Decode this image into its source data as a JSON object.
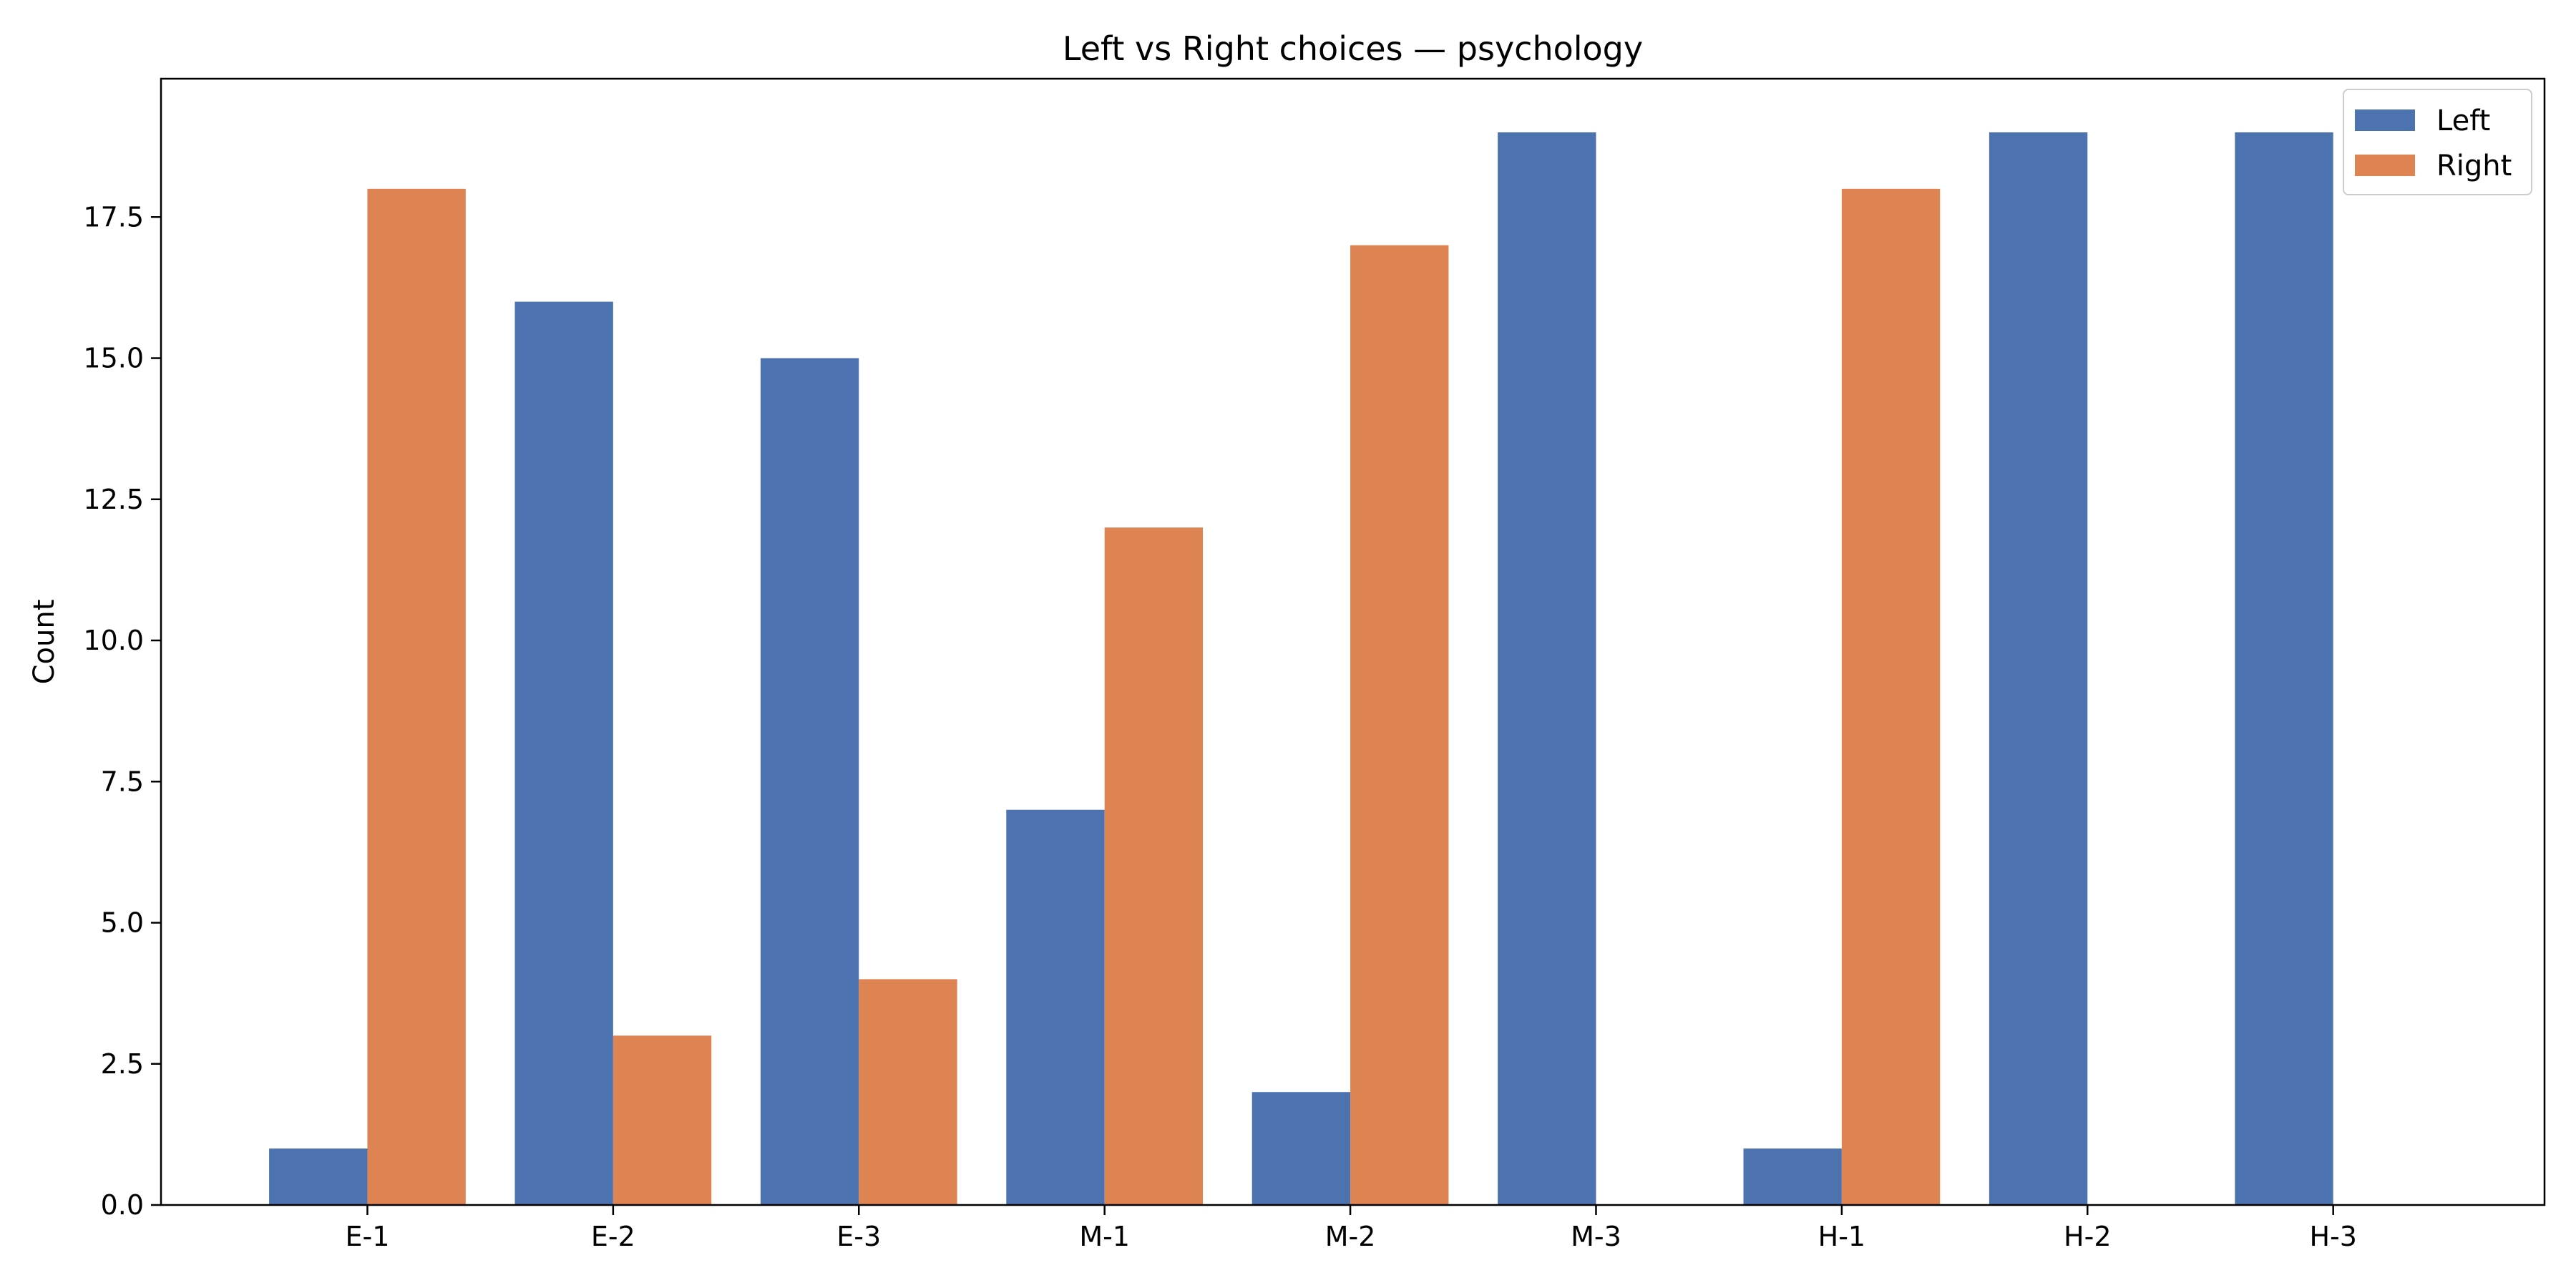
{
  "chart_data": {
    "type": "bar",
    "title": "Left vs Right choices — psychology",
    "xlabel": "",
    "ylabel": "Count",
    "categories": [
      "E-1",
      "E-2",
      "E-3",
      "M-1",
      "M-2",
      "M-3",
      "H-1",
      "H-2",
      "H-3"
    ],
    "series": [
      {
        "name": "Left",
        "color": "#4c72b0",
        "values": [
          1,
          16,
          15,
          7,
          2,
          19,
          1,
          19,
          19
        ]
      },
      {
        "name": "Right",
        "color": "#dd8452",
        "values": [
          18,
          3,
          4,
          12,
          17,
          0,
          18,
          0,
          0
        ]
      }
    ],
    "ylim": [
      0,
      20
    ],
    "yticks": [
      "0.0",
      "2.5",
      "5.0",
      "7.5",
      "10.0",
      "12.5",
      "15.0",
      "17.5"
    ],
    "legend": "top-right",
    "grid": false
  }
}
